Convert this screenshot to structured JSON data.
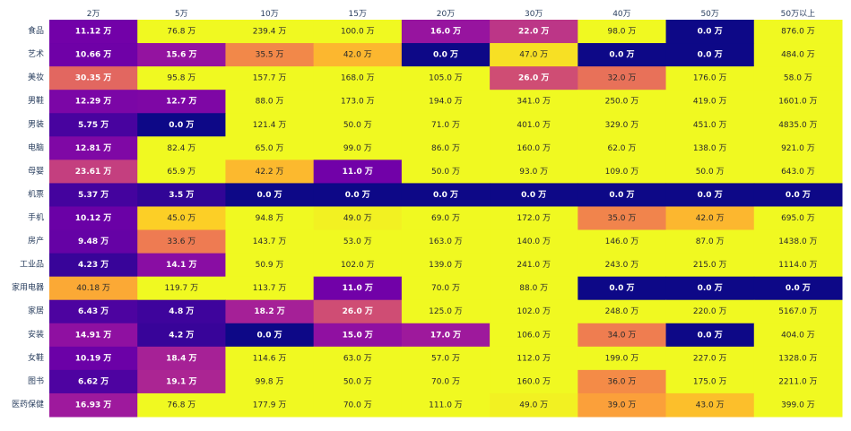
{
  "chart_data": {
    "type": "heatmap",
    "title": "",
    "xlabel": "",
    "ylabel": "",
    "x": [
      "2万",
      "5万",
      "10万",
      "15万",
      "20万",
      "30万",
      "40万",
      "50万",
      "50万以上"
    ],
    "y": [
      "食品",
      "艺术",
      "美妆",
      "男鞋",
      "男装",
      "电脑",
      "母婴",
      "机票",
      "手机",
      "房产",
      "工业品",
      "家用电器",
      "家居",
      "安装",
      "女鞋",
      "图书",
      "医药保健"
    ],
    "z": [
      [
        11.12,
        76.8,
        239.4,
        100.0,
        16.0,
        22.0,
        98.0,
        0.0,
        876.0
      ],
      [
        10.66,
        15.6,
        35.5,
        42.0,
        0.0,
        47.0,
        0.0,
        0.0,
        484.0
      ],
      [
        30.35,
        95.8,
        157.7,
        168.0,
        105.0,
        26.0,
        32.0,
        176.0,
        58.0
      ],
      [
        12.29,
        12.7,
        88.0,
        173.0,
        194.0,
        341.0,
        250.0,
        419.0,
        1601.0
      ],
      [
        5.75,
        0.0,
        121.4,
        50.0,
        71.0,
        401.0,
        329.0,
        451.0,
        4835.0
      ],
      [
        12.81,
        82.4,
        65.0,
        99.0,
        86.0,
        160.0,
        62.0,
        138.0,
        921.0
      ],
      [
        23.61,
        65.9,
        42.2,
        11.0,
        50.0,
        93.0,
        109.0,
        50.0,
        643.0
      ],
      [
        5.37,
        3.5,
        0.0,
        0.0,
        0.0,
        0.0,
        0.0,
        0.0,
        0.0
      ],
      [
        10.12,
        45.0,
        94.8,
        49.0,
        69.0,
        172.0,
        35.0,
        42.0,
        695.0
      ],
      [
        9.48,
        33.6,
        143.7,
        53.0,
        163.0,
        140.0,
        146.0,
        87.0,
        1438.0
      ],
      [
        4.23,
        14.1,
        50.9,
        102.0,
        139.0,
        241.0,
        243.0,
        215.0,
        1114.0
      ],
      [
        40.18,
        119.7,
        113.7,
        11.0,
        70.0,
        88.0,
        0.0,
        0.0,
        0.0
      ],
      [
        6.43,
        4.8,
        18.2,
        26.0,
        125.0,
        102.0,
        248.0,
        220.0,
        5167.0
      ],
      [
        14.91,
        4.2,
        0.0,
        15.0,
        17.0,
        106.0,
        34.0,
        0.0,
        404.0
      ],
      [
        10.19,
        18.4,
        114.6,
        63.0,
        57.0,
        112.0,
        199.0,
        227.0,
        1328.0
      ],
      [
        6.62,
        19.1,
        99.8,
        50.0,
        70.0,
        160.0,
        36.0,
        175.0,
        2211.0
      ],
      [
        16.93,
        76.8,
        177.9,
        70.0,
        111.0,
        49.0,
        39.0,
        43.0,
        399.0
      ]
    ],
    "text": [
      [
        "11.12 万",
        "76.8 万",
        "239.4 万",
        "100.0 万",
        "16.0 万",
        "22.0 万",
        "98.0 万",
        "0.0 万",
        "876.0 万"
      ],
      [
        "10.66 万",
        "15.6 万",
        "35.5 万",
        "42.0 万",
        "0.0 万",
        "47.0 万",
        "0.0 万",
        "0.0 万",
        "484.0 万"
      ],
      [
        "30.35 万",
        "95.8 万",
        "157.7 万",
        "168.0 万",
        "105.0 万",
        "26.0 万",
        "32.0 万",
        "176.0 万",
        "58.0 万"
      ],
      [
        "12.29 万",
        "12.7 万",
        "88.0 万",
        "173.0 万",
        "194.0 万",
        "341.0 万",
        "250.0 万",
        "419.0 万",
        "1601.0 万"
      ],
      [
        "5.75 万",
        "0.0 万",
        "121.4 万",
        "50.0 万",
        "71.0 万",
        "401.0 万",
        "329.0 万",
        "451.0 万",
        "4835.0 万"
      ],
      [
        "12.81 万",
        "82.4 万",
        "65.0 万",
        "99.0 万",
        "86.0 万",
        "160.0 万",
        "62.0 万",
        "138.0 万",
        "921.0 万"
      ],
      [
        "23.61 万",
        "65.9 万",
        "42.2 万",
        "11.0 万",
        "50.0 万",
        "93.0 万",
        "109.0 万",
        "50.0 万",
        "643.0 万"
      ],
      [
        "5.37 万",
        "3.5 万",
        "0.0 万",
        "0.0 万",
        "0.0 万",
        "0.0 万",
        "0.0 万",
        "0.0 万",
        "0.0 万"
      ],
      [
        "10.12 万",
        "45.0 万",
        "94.8 万",
        "49.0 万",
        "69.0 万",
        "172.0 万",
        "35.0 万",
        "42.0 万",
        "695.0 万"
      ],
      [
        "9.48 万",
        "33.6 万",
        "143.7 万",
        "53.0 万",
        "163.0 万",
        "140.0 万",
        "146.0 万",
        "87.0 万",
        "1438.0 万"
      ],
      [
        "4.23 万",
        "14.1 万",
        "50.9 万",
        "102.0 万",
        "139.0 万",
        "241.0 万",
        "243.0 万",
        "215.0 万",
        "1114.0 万"
      ],
      [
        "40.18 万",
        "119.7 万",
        "113.7 万",
        "11.0 万",
        "70.0 万",
        "88.0 万",
        "0.0 万",
        "0.0 万",
        "0.0 万"
      ],
      [
        "6.43 万",
        "4.8 万",
        "18.2 万",
        "26.0 万",
        "125.0 万",
        "102.0 万",
        "248.0 万",
        "220.0 万",
        "5167.0 万"
      ],
      [
        "14.91 万",
        "4.2 万",
        "0.0 万",
        "15.0 万",
        "17.0 万",
        "106.0 万",
        "34.0 万",
        "0.0 万",
        "404.0 万"
      ],
      [
        "10.19 万",
        "18.4 万",
        "114.6 万",
        "63.0 万",
        "57.0 万",
        "112.0 万",
        "199.0 万",
        "227.0 万",
        "1328.0 万"
      ],
      [
        "6.62 万",
        "19.1 万",
        "99.8 万",
        "50.0 万",
        "70.0 万",
        "160.0 万",
        "36.0 万",
        "175.0 万",
        "2211.0 万"
      ],
      [
        "16.93 万",
        "76.8 万",
        "177.9 万",
        "70.0 万",
        "111.0 万",
        "49.0 万",
        "39.0 万",
        "43.0 万",
        "399.0 万"
      ]
    ],
    "colorscale": "plasma",
    "zmin": 0,
    "zmax": 50,
    "x_axis_position": "top",
    "show_colorbar": false
  }
}
